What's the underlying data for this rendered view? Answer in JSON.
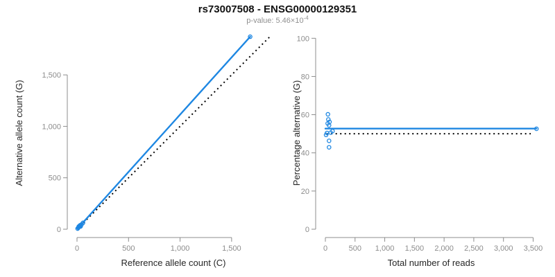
{
  "title": "rs73007508 - ENSG00000129351",
  "subtitle": {
    "prefix": "p-value: 5.46×10",
    "exponent": "-4"
  },
  "colors": {
    "accent_blue": "#1e87e2",
    "axis_gray": "#8c8c8c",
    "tick_label_gray": "#8c8c8c",
    "axis_title_black": "#262626",
    "reference_dash_black": "#000000",
    "subtitle_gray": "#8f8f8f",
    "background": "#ffffff"
  },
  "chart_data": [
    {
      "type": "scatter",
      "name": "allele-counts-panel",
      "xlabel": "Reference allele count (C)",
      "ylabel": "Alternative allele count (G)",
      "xlim": [
        0,
        1900
      ],
      "ylim": [
        0,
        1920
      ],
      "x_ticks": [
        0,
        500,
        1000,
        1500
      ],
      "y_ticks": [
        0,
        500,
        1000,
        1500
      ],
      "x_tick_labels": [
        "0",
        "500",
        "1,000",
        "1,500"
      ],
      "y_tick_labels": [
        "0",
        "500",
        "1,000",
        "1,500"
      ],
      "grid": false,
      "legend": "none",
      "marker": "open-circle",
      "points": [
        [
          6,
          6
        ],
        [
          13,
          14
        ],
        [
          17,
          22
        ],
        [
          17,
          26
        ],
        [
          21,
          29
        ],
        [
          28,
          34
        ],
        [
          31,
          39
        ],
        [
          33,
          29
        ],
        [
          35,
          27
        ],
        [
          44,
          46
        ],
        [
          58,
          62
        ],
        [
          1680,
          1871
        ]
      ],
      "fit_line": {
        "x1": 6,
        "y1": 7,
        "x2": 1680,
        "y2": 1871,
        "style": "solid-blue"
      },
      "reference_line": {
        "x1": 0,
        "y1": 0,
        "x2": 1870,
        "y2": 1870,
        "style": "dotted-black",
        "meaning": "identity y=x"
      }
    },
    {
      "type": "scatter",
      "name": "percentage-panel",
      "xlabel": "Total number of reads",
      "ylabel": "Percentage alternative (G)",
      "xlim": [
        0,
        3600
      ],
      "ylim": [
        0,
        100
      ],
      "x_ticks": [
        0,
        500,
        1000,
        1500,
        2000,
        2500,
        3000,
        3500
      ],
      "y_ticks": [
        0,
        20,
        40,
        60,
        80,
        100
      ],
      "x_tick_labels": [
        "0",
        "500",
        "1,000",
        "1,500",
        "2,000",
        "2,500",
        "3,000",
        "3,500"
      ],
      "y_tick_labels": [
        "0",
        "20",
        "40",
        "60",
        "80",
        "100"
      ],
      "grid": false,
      "legend": "none",
      "marker": "open-circle",
      "points": [
        [
          12,
          49.4
        ],
        [
          27,
          50.4
        ],
        [
          39,
          55.4
        ],
        [
          43,
          60.2
        ],
        [
          50,
          57.5
        ],
        [
          62,
          54.4
        ],
        [
          62,
          46.3
        ],
        [
          62,
          42.9
        ],
        [
          70,
          56.2
        ],
        [
          90,
          50.6
        ],
        [
          120,
          51.4
        ],
        [
          3556,
          52.6
        ]
      ],
      "fit_line": {
        "x1": 0,
        "y1": 52.7,
        "x2": 3556,
        "y2": 52.7,
        "style": "solid-blue"
      },
      "reference_line": {
        "x1": 20,
        "y1": 50,
        "x2": 3460,
        "y2": 50,
        "style": "dotted-black",
        "meaning": "50% line"
      }
    }
  ]
}
